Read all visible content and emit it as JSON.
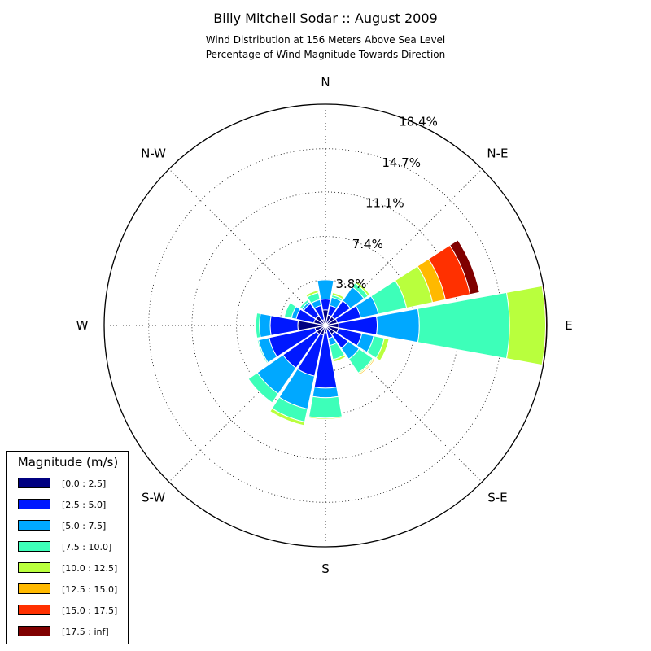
{
  "chart_data": {
    "type": "windrose",
    "title": "Billy Mitchell Sodar :: August 2009",
    "subtitle_lines": [
      "Wind Distribution at 156 Meters Above Sea Level",
      "Percentage of Wind Magnitude Towards Direction"
    ],
    "direction_labels": [
      "N",
      "N-E",
      "E",
      "S-E",
      "S",
      "S-W",
      "W",
      "N-W"
    ],
    "radial_ticks": [
      3.8,
      7.4,
      11.1,
      14.7,
      18.4
    ],
    "radial_tick_labels": [
      "3.8%",
      "7.4%",
      "11.1%",
      "14.7%",
      "18.4%"
    ],
    "rmax": 18.4,
    "grid": true,
    "legend": {
      "title": "Magnitude (m/s)",
      "placement": "bottom-left"
    },
    "bins": [
      {
        "label": "[0.0 : 2.5]",
        "color": "#000080"
      },
      {
        "label": "[2.5 : 5.0]",
        "color": "#0018ff"
      },
      {
        "label": "[5.0 : 7.5]",
        "color": "#00a8ff"
      },
      {
        "label": "[7.5 : 10.0]",
        "color": "#3dffb9"
      },
      {
        "label": "[10.0 : 12.5]",
        "color": "#b9ff3d"
      },
      {
        "label": "[12.5 : 15.0]",
        "color": "#ffb900"
      },
      {
        "label": "[15.0 : 17.5]",
        "color": "#ff3000"
      },
      {
        "label": "[17.5 : inf]",
        "color": "#800000"
      }
    ],
    "sector_width_deg": 22.5,
    "directions_deg": [
      0,
      22.5,
      45,
      67.5,
      90,
      112.5,
      135,
      157.5,
      180,
      202.5,
      225,
      247.5,
      270,
      292.5,
      315,
      337.5
    ],
    "cumulative_percent": [
      [
        1.3,
        2.2,
        3.8,
        3.8,
        3.8,
        3.8,
        3.8,
        3.8
      ],
      [
        0.9,
        1.7,
        2.4,
        2.6,
        2.8,
        2.8,
        2.8,
        2.8
      ],
      [
        0.9,
        2.5,
        3.9,
        4.3,
        4.5,
        4.5,
        4.5,
        4.5
      ],
      [
        1.0,
        3.0,
        4.5,
        6.9,
        9.1,
        10.2,
        12.3,
        13.1
      ],
      [
        1.1,
        4.3,
        7.8,
        15.3,
        18.3,
        18.3,
        18.3,
        18.4
      ],
      [
        1.1,
        3.1,
        4.1,
        5.0,
        5.4,
        5.4,
        5.4,
        5.4
      ],
      [
        0.9,
        2.3,
        3.4,
        4.8,
        4.9,
        5.0,
        5.0,
        5.0
      ],
      [
        0.4,
        1.1,
        1.7,
        2.9,
        3.1,
        3.1,
        3.1,
        3.1
      ],
      [
        0.6,
        5.2,
        6.0,
        7.7,
        7.8,
        7.8,
        7.8,
        7.8
      ],
      [
        0.8,
        4.3,
        7.1,
        8.2,
        8.5,
        8.5,
        8.5,
        8.5
      ],
      [
        0.9,
        4.3,
        6.9,
        7.8,
        7.8,
        7.8,
        7.8,
        7.8
      ],
      [
        0.9,
        4.8,
        5.7,
        5.8,
        5.8,
        5.8,
        5.8,
        5.8
      ],
      [
        2.3,
        4.6,
        5.5,
        5.8,
        5.8,
        5.8,
        5.8,
        5.8
      ],
      [
        1.0,
        2.5,
        2.9,
        3.5,
        3.5,
        3.5,
        3.5,
        3.5
      ],
      [
        1.0,
        2.2,
        2.4,
        2.6,
        2.6,
        2.6,
        2.6,
        2.6
      ],
      [
        0.5,
        1.7,
        2.2,
        2.8,
        3.0,
        3.0,
        3.0,
        3.0
      ]
    ]
  }
}
